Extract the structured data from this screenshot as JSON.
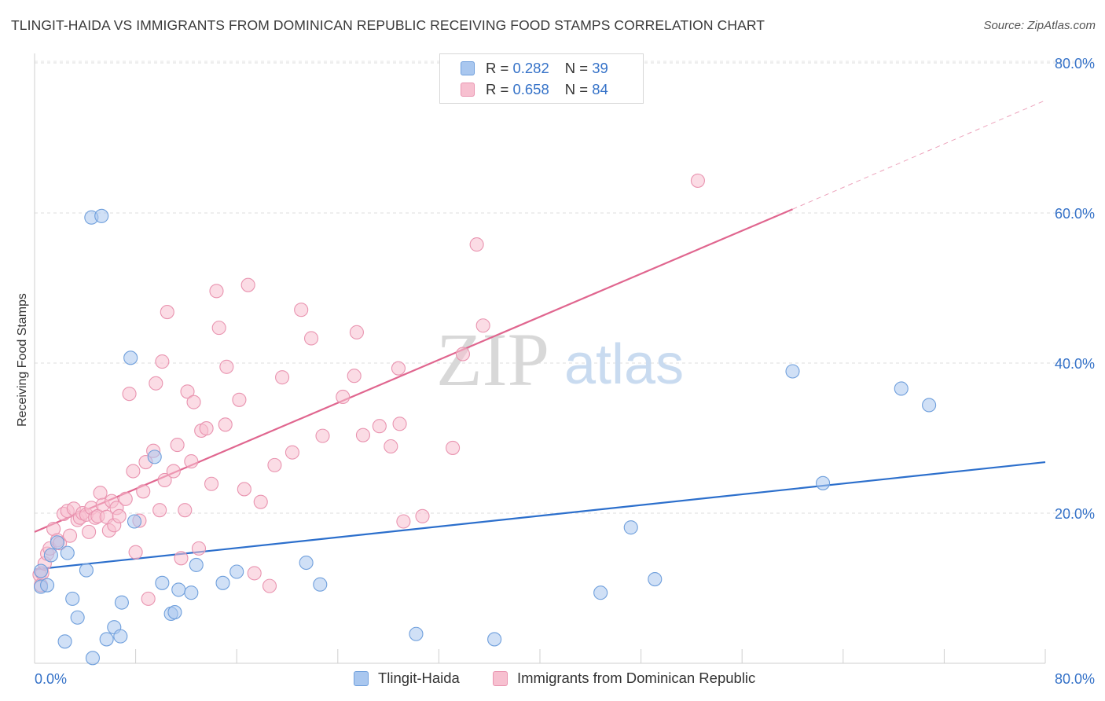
{
  "header": {
    "title": "TLINGIT-HAIDA VS IMMIGRANTS FROM DOMINICAN REPUBLIC RECEIVING FOOD STAMPS CORRELATION CHART",
    "source": "Source: ZipAtlas.com"
  },
  "watermark": {
    "zip": "ZIP",
    "atlas": "atlas"
  },
  "legend": {
    "series": [
      {
        "r_label": "R =",
        "r_value": "0.282",
        "n_label": "N =",
        "n_value": "39",
        "color": "#a9c7ef",
        "stroke": "#6f9fdc"
      },
      {
        "r_label": "R =",
        "r_value": "0.658",
        "n_label": "N =",
        "n_value": "84",
        "color": "#f7c0d0",
        "stroke": "#e994b0"
      }
    ]
  },
  "chart_data": {
    "type": "scatter",
    "title": "TLINGIT-HAIDA VS IMMIGRANTS FROM DOMINICAN REPUBLIC RECEIVING FOOD STAMPS CORRELATION CHART",
    "xlabel": "",
    "ylabel": "Receiving Food Stamps",
    "xlim": [
      0,
      80
    ],
    "ylim": [
      0,
      80
    ],
    "x_tick_labels": [
      "0.0%",
      "80.0%"
    ],
    "y_tick_labels": [
      "20.0%",
      "40.0%",
      "60.0%",
      "80.0%"
    ],
    "y_ticks": [
      20,
      40,
      60,
      80
    ],
    "grid": true,
    "legend_position": "top-center",
    "series": [
      {
        "name": "Tlingit-Haida",
        "color": "#a9c7ef",
        "stroke": "#6f9fdc",
        "line_color": "#2c6fcc",
        "trend": {
          "x0": 0,
          "y0": 12.5,
          "x1": 80,
          "y1": 26.8
        },
        "points": [
          [
            0.5,
            12.3
          ],
          [
            0.5,
            10.2
          ],
          [
            1.0,
            10.4
          ],
          [
            1.3,
            14.4
          ],
          [
            1.8,
            16.1
          ],
          [
            2.4,
            2.9
          ],
          [
            2.6,
            14.7
          ],
          [
            3.0,
            8.6
          ],
          [
            3.4,
            6.1
          ],
          [
            4.1,
            12.4
          ],
          [
            4.6,
            0.7
          ],
          [
            5.7,
            3.2
          ],
          [
            6.3,
            4.8
          ],
          [
            6.8,
            3.6
          ],
          [
            6.9,
            8.1
          ],
          [
            7.6,
            40.7
          ],
          [
            7.9,
            18.9
          ],
          [
            9.5,
            27.5
          ],
          [
            10.1,
            10.7
          ],
          [
            10.8,
            6.6
          ],
          [
            11.1,
            6.8
          ],
          [
            11.4,
            9.8
          ],
          [
            12.4,
            9.4
          ],
          [
            12.8,
            13.1
          ],
          [
            14.9,
            10.7
          ],
          [
            16.0,
            12.2
          ],
          [
            21.5,
            13.4
          ],
          [
            22.6,
            10.5
          ],
          [
            30.2,
            3.9
          ],
          [
            36.4,
            3.2
          ],
          [
            44.8,
            9.4
          ],
          [
            47.2,
            18.1
          ],
          [
            49.1,
            11.2
          ],
          [
            60.0,
            38.9
          ],
          [
            62.4,
            24.0
          ],
          [
            68.6,
            36.6
          ],
          [
            70.8,
            34.4
          ],
          [
            4.5,
            59.4
          ],
          [
            5.3,
            59.6
          ]
        ]
      },
      {
        "name": "Immigrants from Dominican Republic",
        "color": "#f7c0d0",
        "stroke": "#e994b0",
        "line_color": "#e0668f",
        "trend": {
          "x0": 0,
          "y0": 17.5,
          "x1": 60,
          "y1": 60.5
        },
        "trend_dashed": {
          "x0": 60,
          "y0": 60.5,
          "x1": 80,
          "y1": 75.0
        },
        "points": [
          [
            0.4,
            11.8
          ],
          [
            0.5,
            10.4
          ],
          [
            0.6,
            12.0
          ],
          [
            0.8,
            13.3
          ],
          [
            1.0,
            14.6
          ],
          [
            1.2,
            15.3
          ],
          [
            1.5,
            17.9
          ],
          [
            1.8,
            16.4
          ],
          [
            2.0,
            16.0
          ],
          [
            2.3,
            19.9
          ],
          [
            2.6,
            20.3
          ],
          [
            2.8,
            17.0
          ],
          [
            3.1,
            20.6
          ],
          [
            3.4,
            19.1
          ],
          [
            3.6,
            19.4
          ],
          [
            3.8,
            20.0
          ],
          [
            4.1,
            19.8
          ],
          [
            4.3,
            17.5
          ],
          [
            4.5,
            20.7
          ],
          [
            4.8,
            19.4
          ],
          [
            5.0,
            19.6
          ],
          [
            5.2,
            22.7
          ],
          [
            5.4,
            21.1
          ],
          [
            5.7,
            19.5
          ],
          [
            5.9,
            17.7
          ],
          [
            6.1,
            21.6
          ],
          [
            6.3,
            18.4
          ],
          [
            6.5,
            20.7
          ],
          [
            6.7,
            19.6
          ],
          [
            7.2,
            21.9
          ],
          [
            7.5,
            35.9
          ],
          [
            7.8,
            25.6
          ],
          [
            8.0,
            14.8
          ],
          [
            8.3,
            19.0
          ],
          [
            8.6,
            22.9
          ],
          [
            8.8,
            26.8
          ],
          [
            9.0,
            8.6
          ],
          [
            9.4,
            28.3
          ],
          [
            9.6,
            37.3
          ],
          [
            9.9,
            20.4
          ],
          [
            10.1,
            40.2
          ],
          [
            10.3,
            24.4
          ],
          [
            10.5,
            46.8
          ],
          [
            11.0,
            25.6
          ],
          [
            11.3,
            29.1
          ],
          [
            11.6,
            14.0
          ],
          [
            11.9,
            20.4
          ],
          [
            12.1,
            36.2
          ],
          [
            12.4,
            26.9
          ],
          [
            12.6,
            34.8
          ],
          [
            13.0,
            15.3
          ],
          [
            13.2,
            31.0
          ],
          [
            13.6,
            31.3
          ],
          [
            14.0,
            23.9
          ],
          [
            14.4,
            49.6
          ],
          [
            14.6,
            44.7
          ],
          [
            15.1,
            31.8
          ],
          [
            15.2,
            39.5
          ],
          [
            16.2,
            35.1
          ],
          [
            16.6,
            23.2
          ],
          [
            16.9,
            50.4
          ],
          [
            17.4,
            12.0
          ],
          [
            17.9,
            21.5
          ],
          [
            18.6,
            10.3
          ],
          [
            19.0,
            26.4
          ],
          [
            19.6,
            38.1
          ],
          [
            20.4,
            28.1
          ],
          [
            21.1,
            47.1
          ],
          [
            21.9,
            43.3
          ],
          [
            22.8,
            30.3
          ],
          [
            24.4,
            35.5
          ],
          [
            25.3,
            38.3
          ],
          [
            25.5,
            44.1
          ],
          [
            26.0,
            30.4
          ],
          [
            27.3,
            31.6
          ],
          [
            28.2,
            28.9
          ],
          [
            28.8,
            39.3
          ],
          [
            29.2,
            18.9
          ],
          [
            28.9,
            31.9
          ],
          [
            30.7,
            19.6
          ],
          [
            33.1,
            28.7
          ],
          [
            33.9,
            41.2
          ],
          [
            35.5,
            45.0
          ],
          [
            35.0,
            55.8
          ],
          [
            52.5,
            64.3
          ]
        ]
      }
    ]
  },
  "bottom_legend": {
    "items": [
      {
        "label": "Tlingit-Haida",
        "color": "#a9c7ef",
        "stroke": "#6f9fdc"
      },
      {
        "label": "Immigrants from Dominican Republic",
        "color": "#f7c0d0",
        "stroke": "#e994b0"
      }
    ]
  }
}
